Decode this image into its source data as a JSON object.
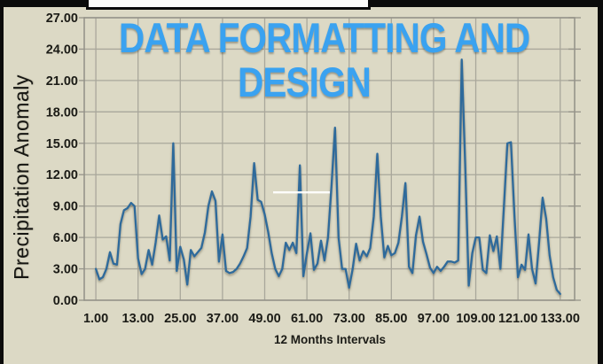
{
  "overlay_title": {
    "line1": "DATA FORMATTING AND",
    "line2": "DESIGN",
    "color": "#3aa2f0"
  },
  "colors": {
    "background": "#dcd9c5",
    "gridline": "#a9a79b",
    "plot_border": "#96948a",
    "series_line": "#2f6b9b",
    "axis_text": "#1b1b16",
    "banner_black": "#0b0b0b",
    "banner_white": "#fdfdfb"
  },
  "chart_data": {
    "type": "line",
    "title": "",
    "xlabel": "12 Months Intervals",
    "ylabel": "Precipitation Anomaly",
    "x_tick_labels": [
      "1.00",
      "13.00",
      "25.00",
      "37.00",
      "49.00",
      "61.00",
      "73.00",
      "85.00",
      "97.00",
      "109.00",
      "121.00",
      "133.00"
    ],
    "y_tick_labels": [
      "0.00",
      "3.00",
      "6.00",
      "9.00",
      "12.00",
      "15.00",
      "18.00",
      "21.00",
      "24.00",
      "27.00"
    ],
    "xlim": [
      -2.3,
      137.1
    ],
    "ylim": [
      0,
      27
    ],
    "grid": true,
    "legend": false,
    "series": [
      {
        "name": "Precipitation Anomaly",
        "color": "#2f6b9b",
        "x_first": 1,
        "x_step": 1,
        "values": [
          3.0,
          2.0,
          2.2,
          3.0,
          4.6,
          3.5,
          3.4,
          7.3,
          8.6,
          8.8,
          9.3,
          9.0,
          4.0,
          2.5,
          3.0,
          4.8,
          3.4,
          5.5,
          8.1,
          5.8,
          6.1,
          3.8,
          15.0,
          2.8,
          5.1,
          3.9,
          1.5,
          4.8,
          4.2,
          4.6,
          5.0,
          6.5,
          9.0,
          10.4,
          9.5,
          3.7,
          6.3,
          2.8,
          2.6,
          2.7,
          3.0,
          3.5,
          4.2,
          5.0,
          8.0,
          13.1,
          9.6,
          9.4,
          8.2,
          6.5,
          4.5,
          3.0,
          2.3,
          3.0,
          5.5,
          4.8,
          5.5,
          4.5,
          12.9,
          2.3,
          4.5,
          6.4,
          2.9,
          3.5,
          5.7,
          3.8,
          6.0,
          11.0,
          16.5,
          6.0,
          3.0,
          3.0,
          1.2,
          3.0,
          5.4,
          3.8,
          4.7,
          4.2,
          5.0,
          8.0,
          14.0,
          8.0,
          4.1,
          5.2,
          4.3,
          4.5,
          5.5,
          8.0,
          11.2,
          3.2,
          2.6,
          6.2,
          8.0,
          5.6,
          4.4,
          3.1,
          2.6,
          3.2,
          2.8,
          3.2,
          3.7,
          3.7,
          3.6,
          3.8,
          23.0,
          13.0,
          1.4,
          4.5,
          6.0,
          6.0,
          2.9,
          2.6,
          6.2,
          4.7,
          6.1,
          3.0,
          9.0,
          15.0,
          15.1,
          8.0,
          2.2,
          3.4,
          2.9,
          6.3,
          3.0,
          1.6,
          5.5,
          9.8,
          7.8,
          4.3,
          2.2,
          1.0,
          0.6
        ]
      }
    ]
  }
}
